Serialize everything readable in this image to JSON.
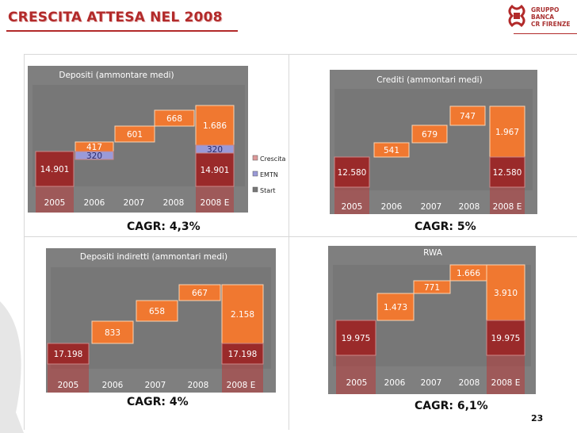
{
  "title": "CRESCITA ATTESA NEL 2008",
  "logo": {
    "lines": [
      "GRUPPO",
      "BANCA",
      "CR FIRENZE"
    ]
  },
  "page_number": "23",
  "colors": {
    "title": "#b22a2a",
    "orange": "#f07830",
    "dark_red": "#9a2a2a",
    "panel_bg": "#7f7f7f",
    "emtn": "#9a9ad8"
  },
  "chart_data": [
    {
      "type": "bar",
      "title": "Depositi (ammontare medi)",
      "categories": [
        "2005",
        "2006",
        "2007",
        "2008",
        "2008 E"
      ],
      "series": [
        {
          "name": "Crescita",
          "values": [
            0,
            417,
            601,
            668,
            1.686
          ]
        },
        {
          "name": "EMTN",
          "values": [
            0,
            320,
            0,
            0,
            320
          ]
        },
        {
          "name": "Start",
          "values": [
            14.901,
            0,
            0,
            0,
            14.901
          ]
        }
      ],
      "labels": [
        {
          "text": "14.901",
          "cat": 0
        },
        {
          "text": "417",
          "cat": 1
        },
        {
          "text": "320",
          "cat": 1
        },
        {
          "text": "601",
          "cat": 2
        },
        {
          "text": "668",
          "cat": 3
        },
        {
          "text": "1.686",
          "cat": 4
        },
        {
          "text": "320",
          "cat": 4
        },
        {
          "text": "14.901",
          "cat": 4
        }
      ],
      "legend": [
        "Crescita",
        "EMTN",
        "Start"
      ],
      "legend_position": "right",
      "cagr": "CAGR: 4,3%"
    },
    {
      "type": "bar",
      "title": "Crediti (ammontari medi)",
      "categories": [
        "2005",
        "2006",
        "2007",
        "2008",
        "2008 E"
      ],
      "labels": [
        {
          "text": "12.580",
          "cat": 0
        },
        {
          "text": "541",
          "cat": 1
        },
        {
          "text": "679",
          "cat": 2
        },
        {
          "text": "747",
          "cat": 3
        },
        {
          "text": "1.967",
          "cat": 4
        },
        {
          "text": "12.580",
          "cat": 4
        }
      ],
      "cagr": "CAGR: 5%"
    },
    {
      "type": "bar",
      "title": "Depositi indiretti (ammontari medi)",
      "categories": [
        "2005",
        "2006",
        "2007",
        "2008",
        "2008 E"
      ],
      "labels": [
        {
          "text": "17.198",
          "cat": 0
        },
        {
          "text": "833",
          "cat": 1
        },
        {
          "text": "658",
          "cat": 2
        },
        {
          "text": "667",
          "cat": 3
        },
        {
          "text": "2.158",
          "cat": 4
        },
        {
          "text": "17.198",
          "cat": 4
        }
      ],
      "cagr": "CAGR: 4%"
    },
    {
      "type": "bar",
      "title": "RWA",
      "categories": [
        "2005",
        "2006",
        "2007",
        "2008",
        "2008 E"
      ],
      "labels": [
        {
          "text": "19.975",
          "cat": 0
        },
        {
          "text": "1.473",
          "cat": 1
        },
        {
          "text": "771",
          "cat": 2
        },
        {
          "text": "1.666",
          "cat": 3
        },
        {
          "text": "3.910",
          "cat": 4
        },
        {
          "text": "19.975",
          "cat": 4
        }
      ],
      "cagr": "CAGR: 6,1%"
    }
  ]
}
